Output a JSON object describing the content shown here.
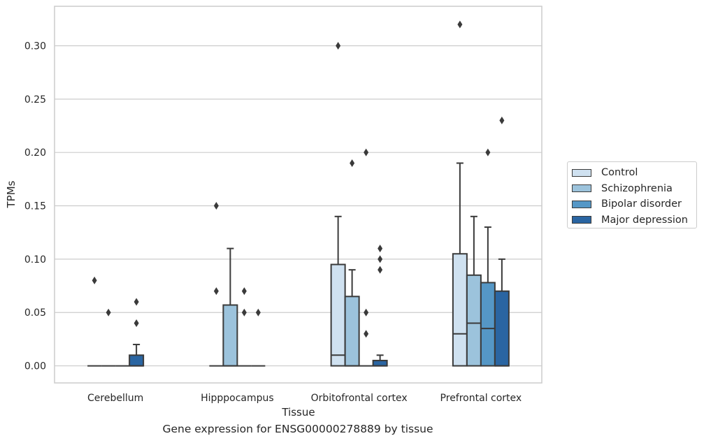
{
  "caption": "Gene expression for ENSG00000278889 by tissue",
  "chart_data": {
    "type": "box",
    "xlabel": "Tissue",
    "ylabel": "TPMs",
    "categories": [
      "Cerebellum",
      "Hipppocampus",
      "Orbitofrontal cortex",
      "Prefrontal cortex"
    ],
    "ylim": [
      -0.016,
      0.337
    ],
    "yticks": [
      "0.00",
      "0.05",
      "0.10",
      "0.15",
      "0.20",
      "0.25",
      "0.30"
    ],
    "grid": true,
    "legend_position": "right",
    "series": [
      {
        "name": "Control",
        "color": "#cfe1f0",
        "boxes": [
          {
            "q1": 0,
            "median": 0,
            "q3": 0,
            "wlo": 0,
            "whi": 0,
            "outliers": [
              0.08
            ]
          },
          {
            "q1": 0,
            "median": 0,
            "q3": 0,
            "wlo": 0,
            "whi": 0,
            "outliers": [
              0.15,
              0.07
            ]
          },
          {
            "q1": 0,
            "median": 0.01,
            "q3": 0.095,
            "wlo": 0,
            "whi": 0.14,
            "outliers": [
              0.3
            ]
          },
          {
            "q1": 0,
            "median": 0.03,
            "q3": 0.105,
            "wlo": 0,
            "whi": 0.19,
            "outliers": [
              0.32
            ]
          }
        ]
      },
      {
        "name": "Schizophrenia",
        "color": "#9cc3dc",
        "boxes": [
          {
            "q1": 0,
            "median": 0,
            "q3": 0,
            "wlo": 0,
            "whi": 0,
            "outliers": [
              0.05
            ]
          },
          {
            "q1": 0,
            "median": 0,
            "q3": 0.057,
            "wlo": 0,
            "whi": 0.11,
            "outliers": []
          },
          {
            "q1": 0,
            "median": 0,
            "q3": 0.065,
            "wlo": 0,
            "whi": 0.09,
            "outliers": [
              0.19
            ]
          },
          {
            "q1": 0,
            "median": 0.04,
            "q3": 0.085,
            "wlo": 0,
            "whi": 0.14,
            "outliers": []
          }
        ]
      },
      {
        "name": "Bipolar disorder",
        "color": "#5597c6",
        "boxes": [
          {
            "q1": 0,
            "median": 0,
            "q3": 0,
            "wlo": 0,
            "whi": 0,
            "outliers": []
          },
          {
            "q1": 0,
            "median": 0,
            "q3": 0,
            "wlo": 0,
            "whi": 0,
            "outliers": [
              0.07,
              0.05
            ]
          },
          {
            "q1": 0,
            "median": 0,
            "q3": 0,
            "wlo": 0,
            "whi": 0,
            "outliers": [
              0.2,
              0.05,
              0.03
            ]
          },
          {
            "q1": 0,
            "median": 0.035,
            "q3": 0.078,
            "wlo": 0,
            "whi": 0.13,
            "outliers": [
              0.2
            ]
          }
        ]
      },
      {
        "name": "Major depression",
        "color": "#2a65a2",
        "boxes": [
          {
            "q1": 0,
            "median": 0,
            "q3": 0.01,
            "wlo": 0,
            "whi": 0.02,
            "outliers": [
              0.06,
              0.04
            ]
          },
          {
            "q1": 0,
            "median": 0,
            "q3": 0,
            "wlo": 0,
            "whi": 0,
            "outliers": [
              0.05
            ]
          },
          {
            "q1": 0,
            "median": 0,
            "q3": 0.005,
            "wlo": 0,
            "whi": 0.01,
            "outliers": [
              0.11,
              0.1,
              0.09
            ]
          },
          {
            "q1": 0,
            "median": 0,
            "q3": 0.07,
            "wlo": 0,
            "whi": 0.1,
            "outliers": [
              0.23
            ]
          }
        ]
      }
    ]
  }
}
